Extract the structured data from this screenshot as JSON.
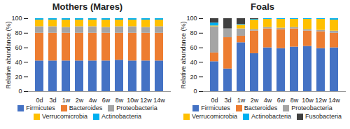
{
  "chart_data": [
    {
      "type": "bar",
      "stacked": true,
      "title": "Mothers (Mares)",
      "ylabel": "Relative abundance (%)",
      "legend": "bottom",
      "categories": [
        "0d",
        "3d",
        "1w",
        "2w",
        "4w",
        "6w",
        "8w",
        "10w",
        "12w",
        "14w"
      ],
      "ylim": [
        0,
        100
      ],
      "yticks": [
        0,
        20,
        40,
        60,
        80,
        100
      ],
      "series": [
        {
          "name": "Firmicutes",
          "color": "#4472c4",
          "values": [
            42,
            42,
            42,
            42,
            42,
            42,
            43,
            42,
            42,
            42
          ]
        },
        {
          "name": "Bacteroides",
          "color": "#ed7d31",
          "values": [
            38,
            38,
            38,
            38,
            38,
            38,
            37,
            38,
            38,
            38
          ]
        },
        {
          "name": "Proteobacteria",
          "color": "#a5a5a5",
          "values": [
            9,
            9,
            8,
            9,
            9,
            8,
            9,
            9,
            8,
            9
          ]
        },
        {
          "name": "Verrucomicrobia",
          "color": "#ffc000",
          "values": [
            9,
            9,
            10,
            9,
            9,
            10,
            9,
            9,
            10,
            9
          ]
        },
        {
          "name": "Actinobacteria",
          "color": "#00b0f0",
          "values": [
            2,
            2,
            2,
            2,
            2,
            2,
            2,
            2,
            2,
            2
          ]
        }
      ]
    },
    {
      "type": "bar",
      "stacked": true,
      "title": "Foals",
      "ylabel": "Relative abundance (%)",
      "legend": "bottom",
      "categories": [
        "0d",
        "3d",
        "1w",
        "2w",
        "4w",
        "6w",
        "8w",
        "10w",
        "12w",
        "14w"
      ],
      "ylim": [
        0,
        100
      ],
      "yticks": [
        0,
        20,
        40,
        60,
        80,
        100
      ],
      "series": [
        {
          "name": "Firmicutes",
          "color": "#4472c4",
          "values": [
            41,
            31,
            67,
            52,
            60,
            59,
            61,
            62,
            59,
            60
          ]
        },
        {
          "name": "Bacteroides",
          "color": "#ed7d31",
          "values": [
            12,
            43,
            9,
            31,
            26,
            26,
            25,
            21,
            23,
            20
          ]
        },
        {
          "name": "Proteobacteria",
          "color": "#a5a5a5",
          "values": [
            36,
            12,
            10,
            2,
            2,
            2,
            2,
            2,
            2,
            3
          ]
        },
        {
          "name": "Verrucomicrobia",
          "color": "#ffc000",
          "values": [
            1,
            0,
            5,
            13,
            11,
            12,
            11,
            14,
            15,
            15
          ]
        },
        {
          "name": "Actinobacteria",
          "color": "#00b0f0",
          "values": [
            4,
            0,
            1,
            1,
            1,
            1,
            1,
            1,
            1,
            2
          ]
        },
        {
          "name": "Fusobacteria",
          "color": "#404040",
          "values": [
            6,
            14,
            8,
            1,
            0,
            0,
            0,
            0,
            0,
            0
          ]
        }
      ]
    }
  ]
}
